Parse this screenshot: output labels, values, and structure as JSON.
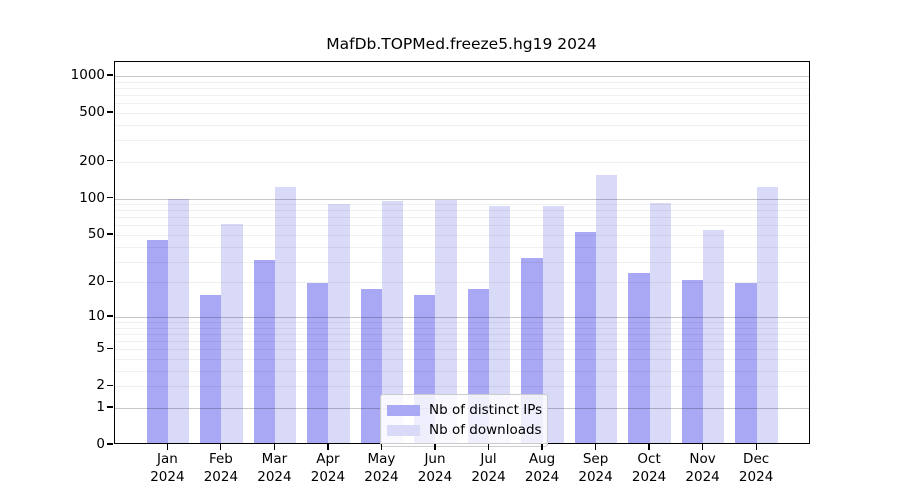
{
  "title": "MafDb.TOPMed.freeze5.hg19 2024",
  "chart_data": {
    "type": "bar",
    "title": "MafDb.TOPMed.freeze5.hg19 2024",
    "categories": [
      "Jan",
      "Feb",
      "Mar",
      "Apr",
      "May",
      "Jun",
      "Jul",
      "Aug",
      "Sep",
      "Oct",
      "Nov",
      "Dec"
    ],
    "year": "2024",
    "series": [
      {
        "name": "Nb of distinct IPs",
        "color": "#a8a8f5",
        "values": [
          44,
          15,
          30,
          19,
          17,
          15,
          17,
          31,
          51,
          23,
          20,
          19
        ]
      },
      {
        "name": "Nb of downloads",
        "color": "#d9d9f8",
        "values": [
          95,
          59,
          119,
          87,
          92,
          93,
          83,
          84,
          150,
          88,
          53,
          119
        ]
      }
    ],
    "xlabel": "",
    "ylabel": "",
    "yscale": "log1p",
    "ylim": [
      0,
      1300
    ],
    "yticks": [
      0,
      1,
      2,
      5,
      10,
      20,
      50,
      100,
      200,
      500,
      1000
    ],
    "ytick_labels": [
      "0",
      "1",
      "2",
      "5",
      "10",
      "20",
      "50",
      "100",
      "200",
      "500",
      "1000"
    ],
    "grid": true,
    "legend_position": "lower center",
    "colors": {
      "grid_major": "#c6c6c6",
      "grid_minor": "#efefef",
      "axis": "#000000",
      "background": "#ffffff"
    }
  }
}
